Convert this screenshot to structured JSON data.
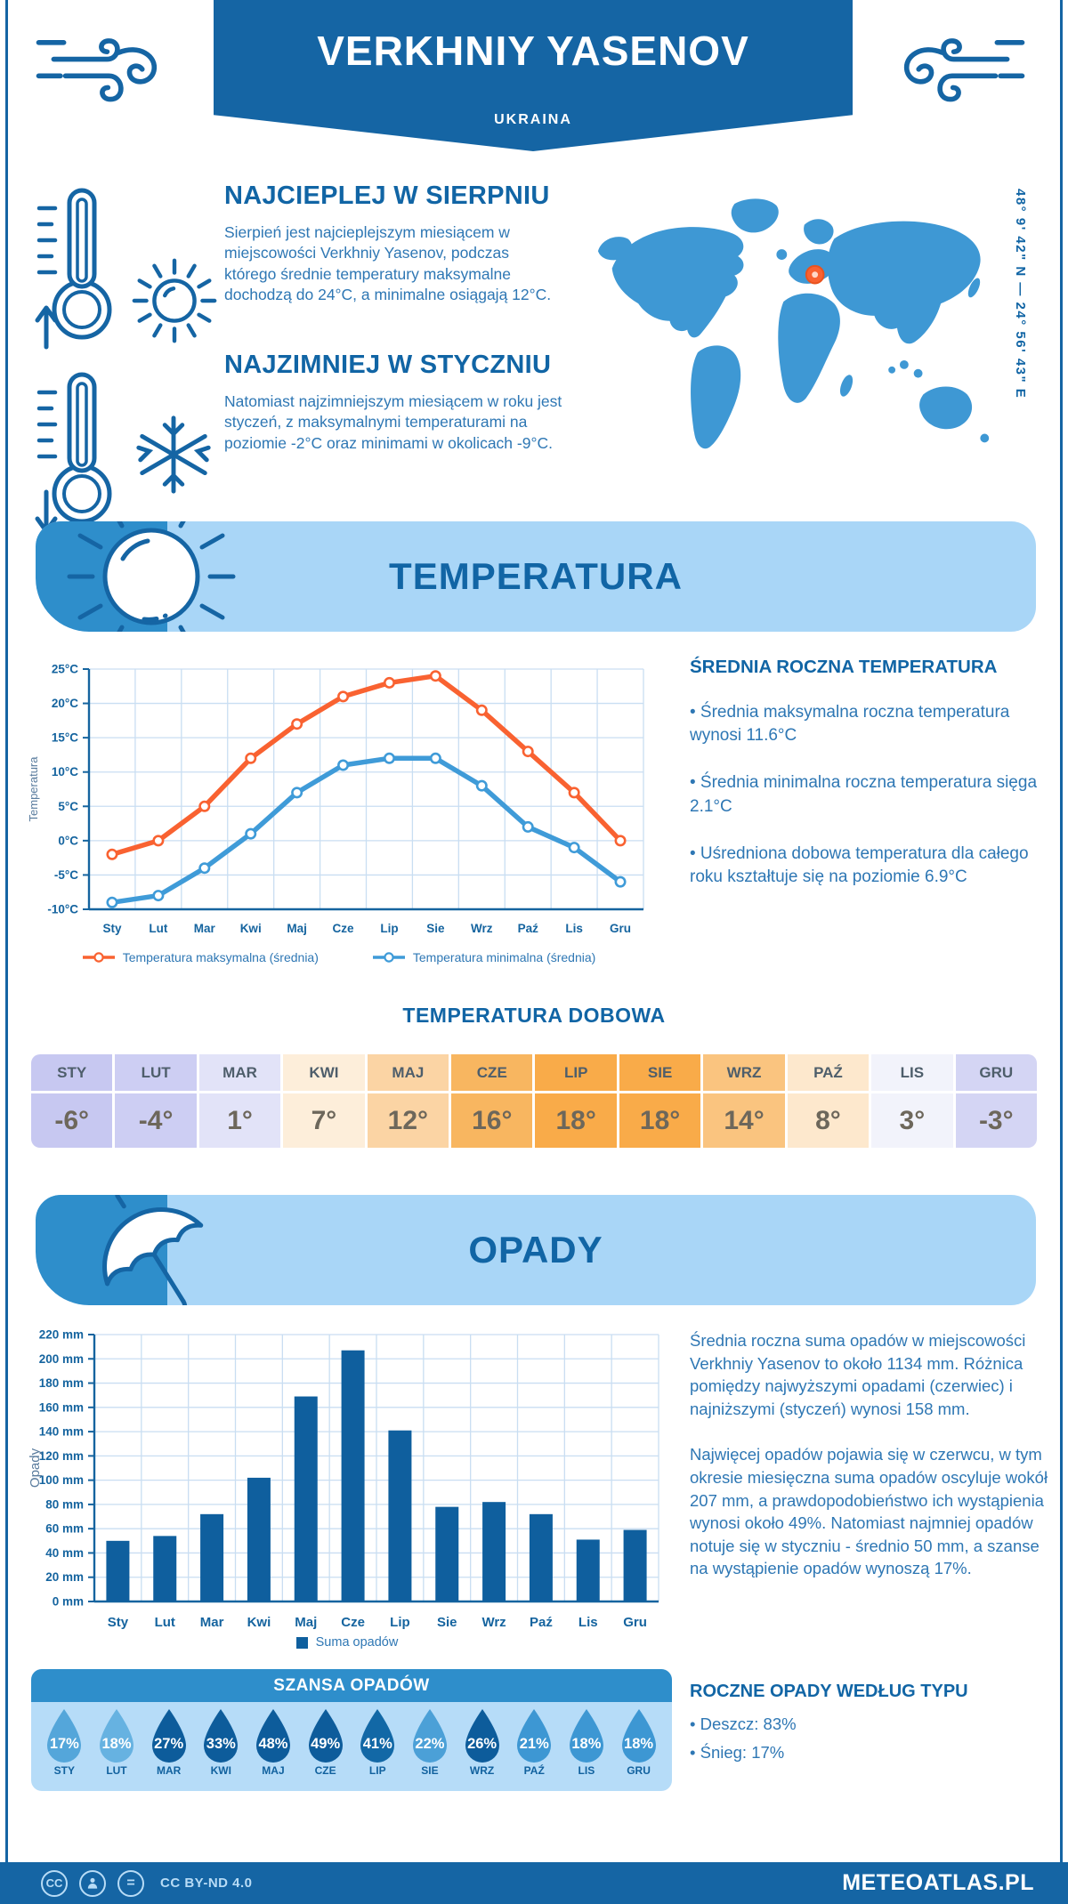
{
  "header": {
    "title": "VERKHNIY YASENOV",
    "subtitle": "UKRAINA"
  },
  "intro": {
    "warm_heading": "NAJCIEPLEJ W SIERPNIU",
    "warm_text": "Sierpień jest najcieplejszym miesiącem w miejscowości Verkhniy Yasenov, podczas którego średnie temperatury maksymalne dochodzą do 24°C, a minimalne osiągają 12°C.",
    "cold_heading": "NAJZIMNIEJ W STYCZNIU",
    "cold_text": "Natomiast najzimniejszym miesiącem w roku jest styczeń, z maksymalnymi temperaturami na poziomie -2°C oraz minimami w okolicach -9°C.",
    "coordinates": "48° 9' 42\" N — 24° 56' 43\" E"
  },
  "temperature": {
    "section_title": "TEMPERATURA",
    "annual_heading": "ŚREDNIA ROCZNA TEMPERATURA",
    "bullets": [
      "• Średnia maksymalna roczna temperatura wynosi 11.6°C",
      "• Średnia minimalna roczna temperatura sięga 2.1°C",
      "• Uśredniona dobowa temperatura dla całego roku kształtuje się na poziomie 6.9°C"
    ],
    "daily_title": "TEMPERATURA DOBOWA"
  },
  "precipitation": {
    "section_title": "OPADY",
    "paragraphs": [
      "Średnia roczna suma opadów w miejscowości Verkhniy Yasenov to około 1134 mm. Różnica pomiędzy najwyższymi opadami (czerwiec) i najniższymi (styczeń) wynosi 158 mm.",
      "Najwięcej opadów pojawia się w czerwcu, w tym okresie miesięczna suma opadów oscyluje wokół 207 mm, a prawdopodobieństwo ich wystąpienia wynosi około 49%. Natomiast najmniej opadów notuje się w styczniu - średnio 50 mm, a szanse na wystąpienie opadów wynoszą 17%."
    ],
    "chance_title": "SZANSA OPADÓW",
    "type_heading": "ROCZNE OPADY WEDŁUG TYPU",
    "type_bullets": [
      "• Deszcz: 83%",
      "• Śnieg: 17%"
    ]
  },
  "footer": {
    "license": "CC BY-ND 4.0",
    "site": "METEOATLAS.PL",
    "cc_label": "CC",
    "nd_label": "="
  },
  "colors": {
    "primary_dark_blue": "#1565a4",
    "heading_blue": "#1165a5",
    "body_blue": "#2e77b4",
    "banner_light_blue": "#a9d6f7",
    "banner_accent_blue": "#2e8ecb",
    "max_line_orange": "#f96231",
    "min_line_blue": "#3f9bd8",
    "bar_blue": "#0f5f9e",
    "panel_light_blue": "#b6dcf8",
    "map_blue": "#3e98d4",
    "marker_orange": "#f96231"
  },
  "chart_data": [
    {
      "type": "line",
      "title": "Temperatura roczna",
      "categories": [
        "Sty",
        "Lut",
        "Mar",
        "Kwi",
        "Maj",
        "Cze",
        "Lip",
        "Sie",
        "Wrz",
        "Paź",
        "Lis",
        "Gru"
      ],
      "series": [
        {
          "name": "Temperatura maksymalna (średnia)",
          "color": "#f96231",
          "values": [
            -2,
            0,
            5,
            12,
            17,
            21,
            23,
            24,
            19,
            13,
            7,
            0
          ]
        },
        {
          "name": "Temperatura minimalna (średnia)",
          "color": "#3f9bd8",
          "values": [
            -9,
            -8,
            -4,
            1,
            7,
            11,
            12,
            12,
            8,
            2,
            -1,
            -6
          ]
        }
      ],
      "ylabel": "Temperatura",
      "ylim": [
        -10,
        25
      ],
      "ytick_step": 5,
      "ytick_suffix": "°C",
      "grid": true,
      "legend_position": "bottom"
    },
    {
      "type": "table",
      "title": "TEMPERATURA DOBOWA",
      "categories": [
        "STY",
        "LUT",
        "MAR",
        "KWI",
        "MAJ",
        "CZE",
        "LIP",
        "SIE",
        "WRZ",
        "PAŹ",
        "LIS",
        "GRU"
      ],
      "values": [
        "-6°",
        "-4°",
        "1°",
        "7°",
        "12°",
        "16°",
        "18°",
        "18°",
        "14°",
        "8°",
        "3°",
        "-3°"
      ],
      "cell_colors": [
        "#c7c8f1",
        "#cdcef3",
        "#e2e3f8",
        "#fdeeda",
        "#fbd4a4",
        "#f8b660",
        "#f9ab49",
        "#f9ab49",
        "#fac47f",
        "#fde8cd",
        "#f2f3fb",
        "#d4d5f4"
      ]
    },
    {
      "type": "bar",
      "title": "Opady",
      "categories": [
        "Sty",
        "Lut",
        "Mar",
        "Kwi",
        "Maj",
        "Cze",
        "Lip",
        "Sie",
        "Wrz",
        "Paź",
        "Lis",
        "Gru"
      ],
      "values": [
        50,
        54,
        72,
        102,
        169,
        207,
        141,
        78,
        82,
        72,
        51,
        59
      ],
      "ylabel": "Opady",
      "ylim": [
        0,
        220
      ],
      "ytick_step": 20,
      "ytick_suffix": " mm",
      "bar_color": "#0f5f9e",
      "legend": "Suma opadów",
      "grid": true
    },
    {
      "type": "droplets",
      "title": "SZANSA OPADÓW",
      "categories": [
        "STY",
        "LUT",
        "MAR",
        "KWI",
        "MAJ",
        "CZE",
        "LIP",
        "SIE",
        "WRZ",
        "PAŹ",
        "LIS",
        "GRU"
      ],
      "values": [
        "17%",
        "18%",
        "27%",
        "33%",
        "48%",
        "49%",
        "41%",
        "22%",
        "26%",
        "21%",
        "18%",
        "18%"
      ],
      "drop_colors": [
        "#54a6da",
        "#66b2e1",
        "#0d5c9b",
        "#0d5c9b",
        "#0d5c9b",
        "#0d5c9b",
        "#1268a6",
        "#4ba0d7",
        "#0d5c9b",
        "#3d97d3",
        "#3d97d3",
        "#3d97d3"
      ]
    }
  ]
}
